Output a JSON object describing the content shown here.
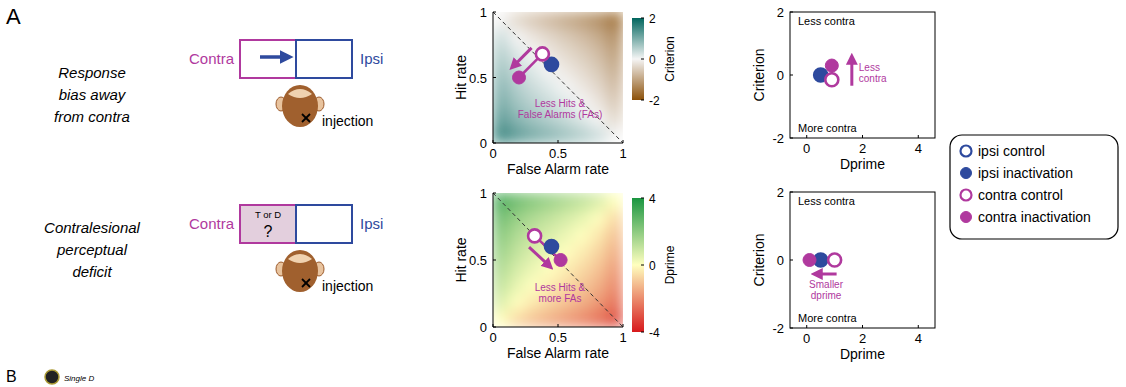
{
  "figure": {
    "panel": "A",
    "next_panel": "B",
    "next_panel_caption": "Single D",
    "rows": [
      {
        "title": [
          "Response",
          "bias away",
          "from contra"
        ],
        "contra": "Contra",
        "ipsi": "Ipsi",
        "injection": "injection"
      },
      {
        "title": [
          "Contralesional",
          "perceptual",
          "deficit"
        ],
        "contra": "Contra",
        "ipsi": "Ipsi",
        "injection": "injection",
        "cue": [
          "T or D",
          "?"
        ]
      }
    ]
  },
  "chart_data": [
    {
      "type": "heatmap",
      "x_label": "False Alarm rate",
      "y_label": "Hit rate",
      "xlim": [
        0,
        1
      ],
      "ylim": [
        0,
        1
      ],
      "xticks": [
        0,
        0.5,
        1
      ],
      "yticks": [
        0,
        0.5,
        1
      ],
      "cells": {
        "x": [
          0.0625,
          0.1875,
          0.3125,
          0.4375,
          0.5625,
          0.6875,
          0.8125,
          0.9375
        ],
        "y": [
          0.0625,
          0.1875,
          0.3125,
          0.4375,
          0.5625,
          0.6875,
          0.8125,
          0.9375
        ],
        "values": [
          [
            1.53,
            1.21,
            1.01,
            0.85,
            0.69,
            0.52,
            0.32,
            0
          ],
          [
            1.21,
            0.89,
            0.69,
            0.53,
            0.37,
            0.2,
            0,
            -0.32
          ],
          [
            1.01,
            0.69,
            0.49,
            0.33,
            0.17,
            0,
            -0.2,
            -0.52
          ],
          [
            0.85,
            0.53,
            0.33,
            0.16,
            0,
            -0.17,
            -0.37,
            -0.69
          ],
          [
            0.69,
            0.37,
            0.17,
            0,
            -0.16,
            -0.33,
            -0.53,
            -0.85
          ],
          [
            0.52,
            0.2,
            0,
            -0.17,
            -0.33,
            -0.49,
            -0.69,
            -1.01
          ],
          [
            0.32,
            0,
            -0.2,
            -0.37,
            -0.53,
            -0.69,
            -0.89,
            -1.21
          ],
          [
            0,
            -0.32,
            -0.52,
            -0.69,
            -0.85,
            -1.01,
            -1.21,
            -1.53
          ]
        ]
      },
      "colorbar": {
        "label": "Criterion",
        "range": [
          -2,
          2
        ],
        "ticks": [
          -2,
          0,
          2
        ],
        "colors": [
          "#8c510a",
          "#f5f5f5",
          "#01665e"
        ]
      },
      "reference_line": {
        "x": [
          0,
          1
        ],
        "y": [
          1,
          0
        ],
        "line_style": "dashed"
      },
      "annotation": [
        "Less Hits &",
        "False Alarms (FAs)"
      ],
      "series": [
        {
          "name": "ipsi control",
          "color": "#2e4a9e",
          "marker": "open",
          "x": [
            0.45
          ],
          "values": [
            0.6
          ]
        },
        {
          "name": "ipsi inactivation",
          "color": "#2e4a9e",
          "marker": "filled",
          "x": [
            0.45
          ],
          "values": [
            0.6
          ]
        },
        {
          "name": "contra control",
          "color": "#b0399e",
          "marker": "open",
          "x": [
            0.38
          ],
          "values": [
            0.68
          ]
        },
        {
          "name": "contra inactivation",
          "color": "#b0399e",
          "marker": "filled",
          "x": [
            0.2
          ],
          "values": [
            0.5
          ]
        }
      ]
    },
    {
      "type": "scatter",
      "x_label": "Dprime",
      "y_label": "Criterion",
      "xlim": [
        -0.6,
        4.6
      ],
      "ylim": [
        -2,
        2
      ],
      "xticks": [
        0,
        2,
        4
      ],
      "yticks": [
        -2,
        0,
        2
      ],
      "annotations": [
        "Less contra",
        "More contra"
      ],
      "arrow_label": [
        "Less",
        "contra"
      ],
      "legend": "right",
      "series": [
        {
          "name": "ipsi control",
          "color": "#2e4a9e",
          "marker": "open",
          "x": [
            0.5
          ],
          "values": [
            0
          ]
        },
        {
          "name": "ipsi inactivation",
          "color": "#2e4a9e",
          "marker": "filled",
          "x": [
            0.5
          ],
          "values": [
            0
          ]
        },
        {
          "name": "contra control",
          "color": "#b0399e",
          "marker": "open",
          "x": [
            0.9
          ],
          "values": [
            -0.15
          ]
        },
        {
          "name": "contra inactivation",
          "color": "#b0399e",
          "marker": "filled",
          "x": [
            0.9
          ],
          "values": [
            0.3
          ]
        }
      ]
    },
    {
      "type": "heatmap",
      "x_label": "False Alarm rate",
      "y_label": "Hit rate",
      "xlim": [
        0,
        1
      ],
      "ylim": [
        0,
        1
      ],
      "xticks": [
        0,
        0.5,
        1
      ],
      "yticks": [
        0,
        0.5,
        1
      ],
      "cells": {
        "x": [
          0.0625,
          0.1875,
          0.3125,
          0.4375,
          0.5625,
          0.6875,
          0.8125,
          0.9375
        ],
        "y": [
          0.0625,
          0.1875,
          0.3125,
          0.4375,
          0.5625,
          0.6875,
          0.8125,
          0.9375
        ],
        "values": [
          [
            0,
            -0.64,
            -1.04,
            -1.37,
            -1.69,
            -2.02,
            -2.42,
            -3.06
          ],
          [
            0.64,
            0,
            -0.4,
            -0.73,
            -1.05,
            -1.38,
            -1.78,
            -2.42
          ],
          [
            1.04,
            0.4,
            0,
            -0.33,
            -0.65,
            -0.98,
            -1.38,
            -2.02
          ],
          [
            1.37,
            0.73,
            0.33,
            0,
            -0.32,
            -0.65,
            -1.05,
            -1.69
          ],
          [
            1.69,
            1.05,
            0.65,
            0.32,
            0,
            -0.33,
            -0.73,
            -1.37
          ],
          [
            2.02,
            1.38,
            0.98,
            0.65,
            0.33,
            0,
            -0.4,
            -1.04
          ],
          [
            2.42,
            1.78,
            1.38,
            1.05,
            0.73,
            0.4,
            0,
            -0.64
          ],
          [
            3.06,
            2.42,
            2.02,
            1.69,
            1.37,
            1.04,
            0.64,
            0
          ]
        ]
      },
      "colorbar": {
        "label": "Dprime",
        "range": [
          -4,
          4
        ],
        "ticks": [
          -4,
          0,
          4
        ],
        "colors": [
          "#d7191c",
          "#ffffbf",
          "#1a9641"
        ]
      },
      "reference_line": {
        "x": [
          0,
          1
        ],
        "y": [
          1,
          0
        ],
        "line_style": "dashed"
      },
      "annotation": [
        "Less Hits &",
        "more FAs"
      ],
      "series": [
        {
          "name": "ipsi control",
          "color": "#2e4a9e",
          "marker": "open",
          "x": [
            0.45
          ],
          "values": [
            0.6
          ]
        },
        {
          "name": "ipsi inactivation",
          "color": "#2e4a9e",
          "marker": "filled",
          "x": [
            0.45
          ],
          "values": [
            0.6
          ]
        },
        {
          "name": "contra control",
          "color": "#b0399e",
          "marker": "open",
          "x": [
            0.32
          ],
          "values": [
            0.68
          ]
        },
        {
          "name": "contra inactivation",
          "color": "#b0399e",
          "marker": "filled",
          "x": [
            0.52
          ],
          "values": [
            0.5
          ]
        }
      ]
    },
    {
      "type": "scatter",
      "x_label": "Dprime",
      "y_label": "Criterion",
      "xlim": [
        -0.6,
        4.6
      ],
      "ylim": [
        -2,
        2
      ],
      "xticks": [
        0,
        2,
        4
      ],
      "yticks": [
        -2,
        0,
        2
      ],
      "annotations": [
        "Less contra",
        "More contra"
      ],
      "arrow_label": [
        "Smaller",
        "dprime"
      ],
      "series": [
        {
          "name": "ipsi control",
          "color": "#2e4a9e",
          "marker": "open",
          "x": [
            0.5
          ],
          "values": [
            0
          ]
        },
        {
          "name": "ipsi inactivation",
          "color": "#2e4a9e",
          "marker": "filled",
          "x": [
            0.5
          ],
          "values": [
            0
          ]
        },
        {
          "name": "contra control",
          "color": "#b0399e",
          "marker": "open",
          "x": [
            1
          ],
          "values": [
            0
          ]
        },
        {
          "name": "contra inactivation",
          "color": "#b0399e",
          "marker": "filled",
          "x": [
            0.1
          ],
          "values": [
            0
          ]
        }
      ]
    }
  ]
}
